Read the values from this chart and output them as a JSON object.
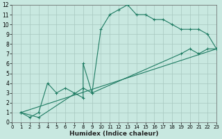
{
  "line1_x": [
    1,
    2,
    3,
    4,
    5,
    6,
    7,
    8,
    8,
    9,
    10,
    11,
    12,
    13,
    14,
    15,
    16,
    17,
    18,
    19,
    20,
    21,
    22,
    23
  ],
  "line1_y": [
    1,
    0.5,
    1,
    4,
    3,
    3.5,
    3,
    2.5,
    6,
    3,
    9.5,
    11,
    11.5,
    12,
    11,
    11,
    10.5,
    10.5,
    10,
    9.5,
    9.5,
    9.5,
    9,
    7.5
  ],
  "line2_x": [
    1,
    3,
    8,
    9,
    19,
    20,
    21,
    22,
    23
  ],
  "line2_y": [
    1,
    0.5,
    3.5,
    3,
    7,
    7.5,
    7,
    7.5,
    7.5
  ],
  "line3_x": [
    1,
    23
  ],
  "line3_y": [
    1,
    7.5
  ],
  "color": "#1E7B62",
  "bg_color": "#C8E8E0",
  "grid_major_color": "#A8C8C0",
  "grid_minor_color": "#B8D8D0",
  "xlabel": "Humidex (Indice chaleur)",
  "xlim": [
    0,
    23
  ],
  "ylim": [
    0,
    12
  ],
  "xticks": [
    0,
    1,
    2,
    3,
    4,
    5,
    6,
    7,
    8,
    9,
    10,
    11,
    12,
    13,
    14,
    15,
    16,
    17,
    18,
    19,
    20,
    21,
    22,
    23
  ],
  "yticks": [
    0,
    1,
    2,
    3,
    4,
    5,
    6,
    7,
    8,
    9,
    10,
    11,
    12
  ]
}
